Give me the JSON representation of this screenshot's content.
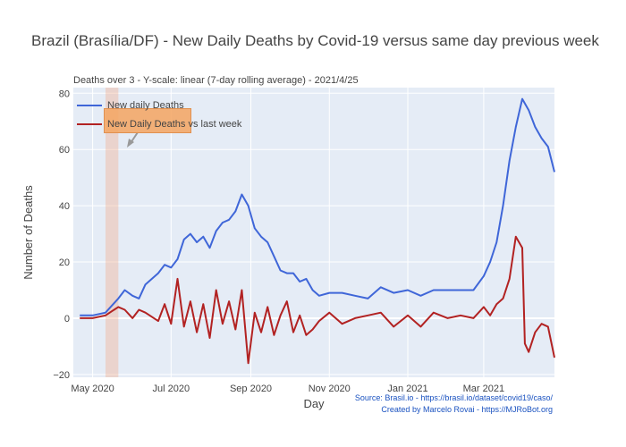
{
  "title": "Brazil (Brasília/DF) - New Daily Deaths by Covid-19 versus same day previous week",
  "subtitle": "Deaths over 3 - Y-scale: linear (7-day rolling average) - 2021/4/25",
  "credits": [
    "Source: Brasil.io - https://brasil.io/dataset/covid19/caso/",
    "Created by Marcelo Rovai - https://MJRoBot.org"
  ],
  "colors": {
    "series1": "#3f66d8",
    "series2": "#b22222",
    "plot_bg": "#e5ecf6",
    "highlight": "#f4a582",
    "annotation": "#f4a460"
  },
  "chart_data": {
    "type": "line",
    "title": "Brazil (Brasília/DF) - New Daily Deaths by Covid-19 versus same day previous week",
    "xlabel": "Day",
    "ylabel": "Number of Deaths",
    "xlim": [
      "2020-04-16",
      "2021-04-25"
    ],
    "ylim": [
      -21,
      82
    ],
    "grid": true,
    "legend_position": "top-left",
    "x_tick_labels": [
      "May 2020",
      "Jul 2020",
      "Sep 2020",
      "Nov 2020",
      "Jan 2021",
      "Mar 2021"
    ],
    "x_tick_dates": [
      "2020-05-01",
      "2020-07-01",
      "2020-09-01",
      "2020-11-01",
      "2021-01-01",
      "2021-03-01"
    ],
    "y_ticks": [
      -20,
      0,
      20,
      40,
      60,
      80
    ],
    "highlight_band": [
      "2020-05-11",
      "2020-05-21"
    ],
    "series": [
      {
        "name": "New daily Deaths",
        "points": [
          [
            "2020-04-21",
            1
          ],
          [
            "2020-05-01",
            1
          ],
          [
            "2020-05-11",
            2
          ],
          [
            "2020-05-21",
            7
          ],
          [
            "2020-05-26",
            10
          ],
          [
            "2020-06-01",
            8
          ],
          [
            "2020-06-06",
            7
          ],
          [
            "2020-06-11",
            12
          ],
          [
            "2020-06-21",
            16
          ],
          [
            "2020-06-26",
            19
          ],
          [
            "2020-07-01",
            18
          ],
          [
            "2020-07-06",
            21
          ],
          [
            "2020-07-11",
            28
          ],
          [
            "2020-07-16",
            30
          ],
          [
            "2020-07-21",
            27
          ],
          [
            "2020-07-26",
            29
          ],
          [
            "2020-07-31",
            25
          ],
          [
            "2020-08-05",
            31
          ],
          [
            "2020-08-10",
            34
          ],
          [
            "2020-08-15",
            35
          ],
          [
            "2020-08-20",
            38
          ],
          [
            "2020-08-25",
            44
          ],
          [
            "2020-08-30",
            40
          ],
          [
            "2020-09-04",
            32
          ],
          [
            "2020-09-09",
            29
          ],
          [
            "2020-09-14",
            27
          ],
          [
            "2020-09-19",
            22
          ],
          [
            "2020-09-24",
            17
          ],
          [
            "2020-09-29",
            16
          ],
          [
            "2020-10-04",
            16
          ],
          [
            "2020-10-09",
            13
          ],
          [
            "2020-10-14",
            14
          ],
          [
            "2020-10-19",
            10
          ],
          [
            "2020-10-24",
            8
          ],
          [
            "2020-11-01",
            9
          ],
          [
            "2020-11-11",
            9
          ],
          [
            "2020-11-21",
            8
          ],
          [
            "2020-12-01",
            7
          ],
          [
            "2020-12-11",
            11
          ],
          [
            "2020-12-21",
            9
          ],
          [
            "2021-01-01",
            10
          ],
          [
            "2021-01-11",
            8
          ],
          [
            "2021-01-21",
            10
          ],
          [
            "2021-02-01",
            10
          ],
          [
            "2021-02-11",
            10
          ],
          [
            "2021-02-21",
            10
          ],
          [
            "2021-03-01",
            15
          ],
          [
            "2021-03-06",
            20
          ],
          [
            "2021-03-11",
            27
          ],
          [
            "2021-03-16",
            40
          ],
          [
            "2021-03-21",
            56
          ],
          [
            "2021-03-26",
            68
          ],
          [
            "2021-03-31",
            78
          ],
          [
            "2021-04-05",
            74
          ],
          [
            "2021-04-10",
            68
          ],
          [
            "2021-04-15",
            64
          ],
          [
            "2021-04-20",
            61
          ],
          [
            "2021-04-25",
            52
          ]
        ]
      },
      {
        "name": "New Daily Deaths vs last week",
        "points": [
          [
            "2020-04-21",
            0
          ],
          [
            "2020-05-01",
            0
          ],
          [
            "2020-05-11",
            1
          ],
          [
            "2020-05-21",
            4
          ],
          [
            "2020-05-26",
            3
          ],
          [
            "2020-06-01",
            0
          ],
          [
            "2020-06-06",
            3
          ],
          [
            "2020-06-11",
            2
          ],
          [
            "2020-06-21",
            -1
          ],
          [
            "2020-06-26",
            5
          ],
          [
            "2020-07-01",
            -2
          ],
          [
            "2020-07-06",
            14
          ],
          [
            "2020-07-11",
            -3
          ],
          [
            "2020-07-16",
            6
          ],
          [
            "2020-07-21",
            -5
          ],
          [
            "2020-07-26",
            5
          ],
          [
            "2020-07-31",
            -7
          ],
          [
            "2020-08-05",
            10
          ],
          [
            "2020-08-10",
            -2
          ],
          [
            "2020-08-15",
            6
          ],
          [
            "2020-08-20",
            -4
          ],
          [
            "2020-08-25",
            10
          ],
          [
            "2020-08-30",
            -16
          ],
          [
            "2020-09-04",
            2
          ],
          [
            "2020-09-09",
            -5
          ],
          [
            "2020-09-14",
            4
          ],
          [
            "2020-09-19",
            -6
          ],
          [
            "2020-09-24",
            1
          ],
          [
            "2020-09-29",
            6
          ],
          [
            "2020-10-04",
            -5
          ],
          [
            "2020-10-09",
            1
          ],
          [
            "2020-10-14",
            -6
          ],
          [
            "2020-10-19",
            -4
          ],
          [
            "2020-10-24",
            -1
          ],
          [
            "2020-11-01",
            2
          ],
          [
            "2020-11-11",
            -2
          ],
          [
            "2020-11-21",
            0
          ],
          [
            "2020-12-01",
            1
          ],
          [
            "2020-12-11",
            2
          ],
          [
            "2020-12-21",
            -3
          ],
          [
            "2021-01-01",
            1
          ],
          [
            "2021-01-11",
            -3
          ],
          [
            "2021-01-21",
            2
          ],
          [
            "2021-02-01",
            0
          ],
          [
            "2021-02-11",
            1
          ],
          [
            "2021-02-21",
            0
          ],
          [
            "2021-03-01",
            4
          ],
          [
            "2021-03-06",
            1
          ],
          [
            "2021-03-11",
            5
          ],
          [
            "2021-03-16",
            7
          ],
          [
            "2021-03-21",
            14
          ],
          [
            "2021-03-26",
            29
          ],
          [
            "2021-03-31",
            25
          ],
          [
            "2021-04-02",
            -9
          ],
          [
            "2021-04-05",
            -12
          ],
          [
            "2021-04-10",
            -5
          ],
          [
            "2021-04-15",
            -2
          ],
          [
            "2021-04-20",
            -3
          ],
          [
            "2021-04-25",
            -14
          ]
        ]
      }
    ]
  }
}
